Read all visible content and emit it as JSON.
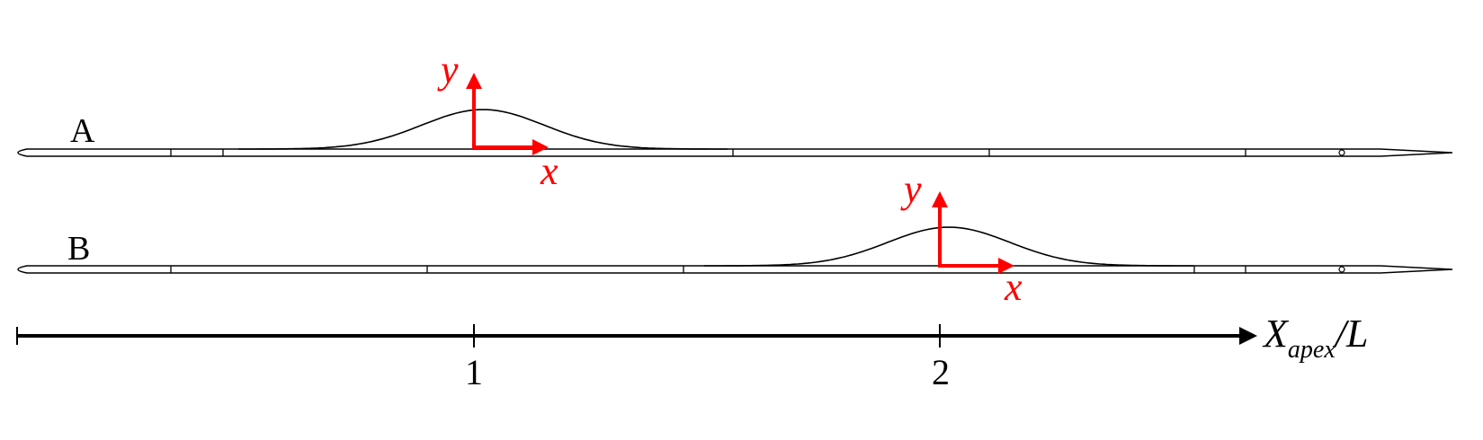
{
  "plates": [
    {
      "label": "A",
      "bump_apex": 1,
      "axis_x_label": "x",
      "axis_y_label": "y"
    },
    {
      "label": "B",
      "bump_apex": 2,
      "axis_x_label": "x",
      "axis_y_label": "y"
    }
  ],
  "apex_axis": {
    "label_main": "X",
    "label_sub": "apex",
    "label_suffix": "/L",
    "ticks": [
      "1",
      "2"
    ]
  },
  "colors": {
    "coord_axes": "#ff0000",
    "lines": "#000000"
  }
}
